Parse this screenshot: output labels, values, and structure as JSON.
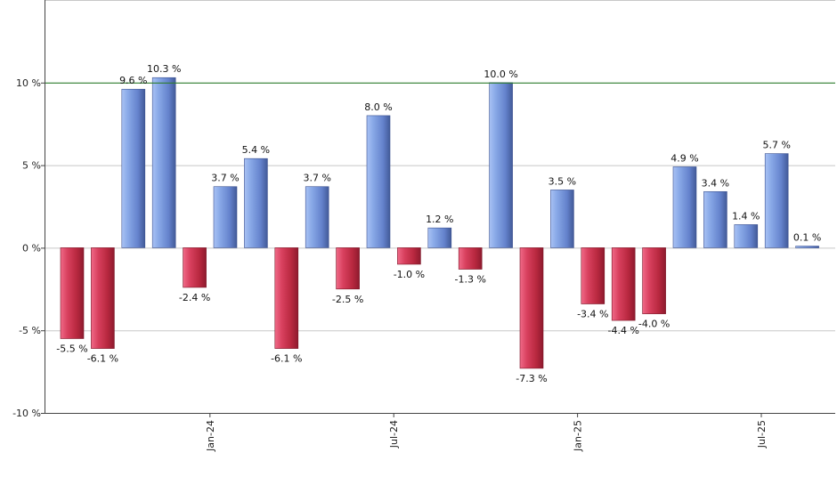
{
  "chart_data": {
    "type": "bar",
    "title": "",
    "xlabel": "",
    "ylabel": "",
    "ylim": [
      -10,
      15
    ],
    "y_ticks": [
      {
        "value": -10,
        "label": "-10 %"
      },
      {
        "value": -5,
        "label": "-5 %"
      },
      {
        "value": 0,
        "label": "0 %"
      },
      {
        "value": 5,
        "label": "5 %"
      },
      {
        "value": 10,
        "label": "10 %"
      }
    ],
    "x_ticks": [
      {
        "index": 4.5,
        "label": "Jan-24"
      },
      {
        "index": 10.5,
        "label": "Jul-24"
      },
      {
        "index": 16.5,
        "label": "Jan-25"
      },
      {
        "index": 22.5,
        "label": "Jul-25"
      }
    ],
    "values": [
      -5.5,
      -6.1,
      9.6,
      10.3,
      -2.4,
      3.7,
      5.4,
      -6.1,
      3.7,
      -2.5,
      8.0,
      -1.0,
      1.2,
      -1.3,
      10.0,
      -7.3,
      3.5,
      -3.4,
      -4.4,
      -4.0,
      4.9,
      3.4,
      1.4,
      5.7,
      0.1
    ],
    "labels": [
      "-5.5 %",
      "-6.1 %",
      "9.6 %",
      "10.3 %",
      "-2.4 %",
      "3.7 %",
      "5.4 %",
      "-6.1 %",
      "3.7 %",
      "-2.5 %",
      "8.0 %",
      "-1.0 %",
      "1.2 %",
      "-1.3 %",
      "10.0 %",
      "-7.3 %",
      "3.5 %",
      "-3.4 %",
      "-4.4 %",
      "-4.0 %",
      "4.9 %",
      "3.4 %",
      "1.4 %",
      "5.7 %",
      "0.1 %"
    ],
    "reference_line": {
      "value": 10,
      "color": "#2e7d2e"
    },
    "grid": true,
    "legend": "none",
    "colors": {
      "positive": "#6f8fd8",
      "negative": "#c8304f",
      "grid": "#c8c8c8",
      "axis": "#444444"
    }
  }
}
